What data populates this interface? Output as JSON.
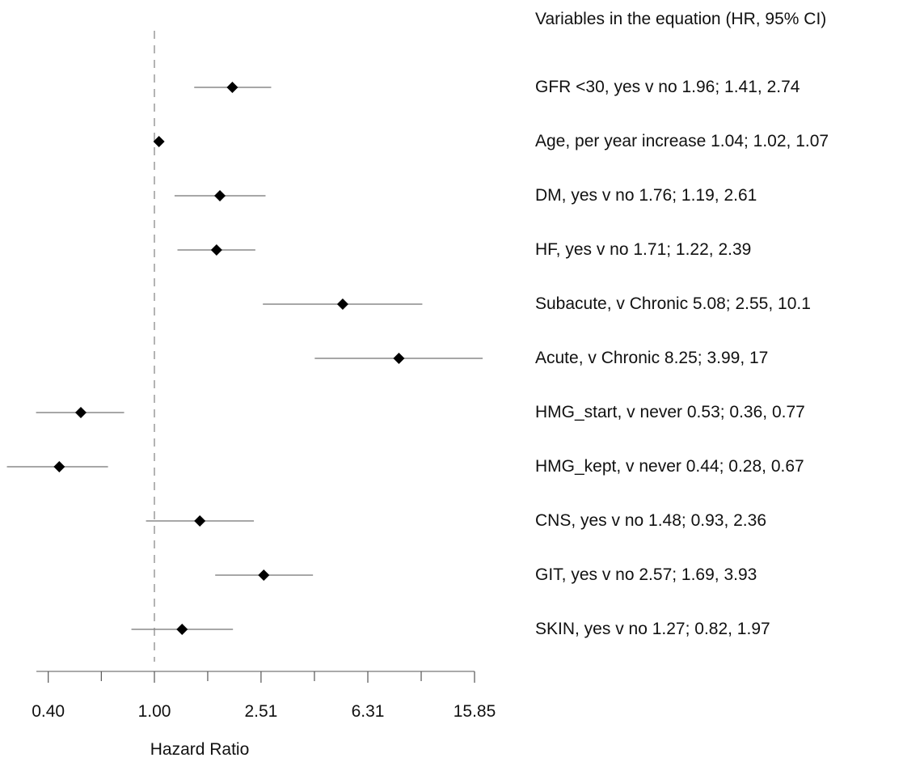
{
  "chart_data": {
    "type": "forest",
    "title": "",
    "xlabel": "Hazard Ratio",
    "ylabel": "",
    "x_scale": "log",
    "xlim": [
      0.35,
      15.85
    ],
    "x_ticks": [
      0.4,
      1.0,
      2.51,
      6.31,
      15.85
    ],
    "x_tick_labels": [
      "0.40",
      "1.00",
      "2.51",
      "6.31",
      "15.85"
    ],
    "reference_line": 1.0,
    "grid": false,
    "legend_title": "Variables in the equation (HR, 95% CI)",
    "rows": [
      {
        "label": "GFR <30, yes v no 1.96; 1.41, 2.74",
        "hr": 1.96,
        "lower": 1.41,
        "upper": 2.74
      },
      {
        "label": "Age, per year increase 1.04; 1.02, 1.07",
        "hr": 1.04,
        "lower": 1.02,
        "upper": 1.07
      },
      {
        "label": "DM, yes v no 1.76; 1.19, 2.61",
        "hr": 1.76,
        "lower": 1.19,
        "upper": 2.61
      },
      {
        "label": "HF, yes v no 1.71; 1.22, 2.39",
        "hr": 1.71,
        "lower": 1.22,
        "upper": 2.39
      },
      {
        "label": "Subacute, v Chronic 5.08; 2.55, 10.1",
        "hr": 5.08,
        "lower": 2.55,
        "upper": 10.1
      },
      {
        "label": "Acute, v Chronic 8.25; 3.99, 17",
        "hr": 8.25,
        "lower": 3.99,
        "upper": 17
      },
      {
        "label": "HMG_start, v never 0.53; 0.36, 0.77",
        "hr": 0.53,
        "lower": 0.36,
        "upper": 0.77
      },
      {
        "label": "HMG_kept, v never 0.44; 0.28, 0.67",
        "hr": 0.44,
        "lower": 0.28,
        "upper": 0.67
      },
      {
        "label": "CNS, yes v no 1.48; 0.93, 2.36",
        "hr": 1.48,
        "lower": 0.93,
        "upper": 2.36
      },
      {
        "label": "GIT, yes v no 2.57; 1.69, 3.93",
        "hr": 2.57,
        "lower": 1.69,
        "upper": 3.93
      },
      {
        "label": "SKIN, yes v no 1.27; 0.82, 1.97",
        "hr": 1.27,
        "lower": 0.82,
        "upper": 1.97
      }
    ]
  }
}
